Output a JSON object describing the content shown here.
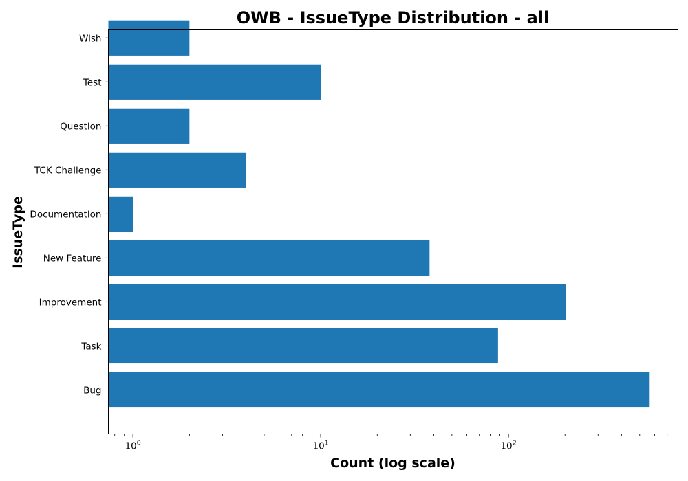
{
  "chart_data": {
    "type": "bar",
    "orientation": "horizontal",
    "title": "OWB - IssueType Distribution - all",
    "xlabel": "Count (log scale)",
    "ylabel": "IssueType",
    "x_scale": "log",
    "xlim": [
      0.74,
      800
    ],
    "x_major_ticks": [
      1,
      10,
      100
    ],
    "categories": [
      "Bug",
      "Task",
      "Improvement",
      "New Feature",
      "Documentation",
      "TCK Challenge",
      "Question",
      "Test",
      "Wish"
    ],
    "values": [
      565,
      88,
      203,
      38,
      1,
      4,
      2,
      10,
      2
    ],
    "bar_color": "#1f77b4",
    "grid": false,
    "legend": "none"
  }
}
